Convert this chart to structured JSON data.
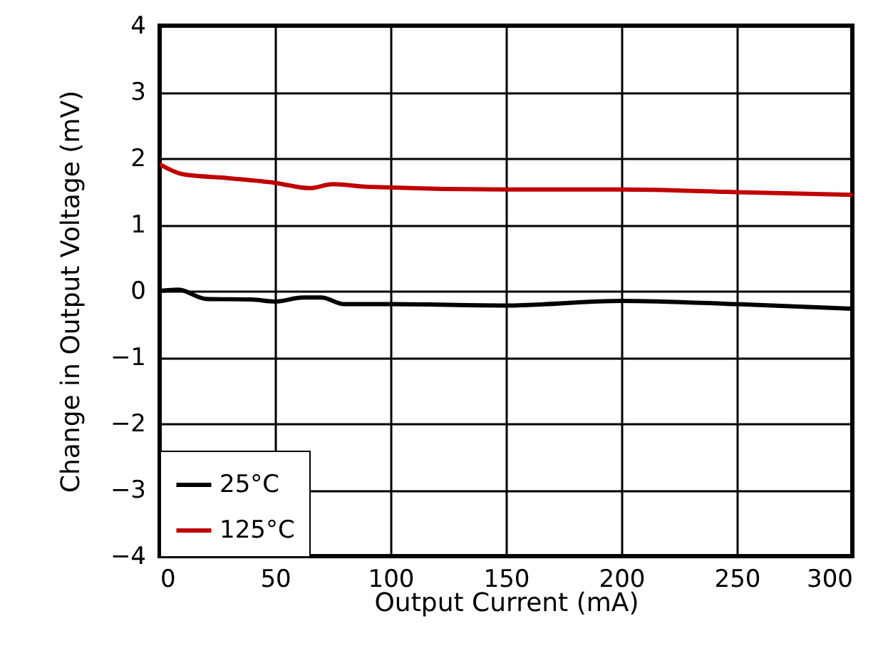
{
  "chart_data": {
    "type": "line",
    "xlabel": "Output Current (mA)",
    "ylabel": "Change in Output Voltage (mV)",
    "xlim": [
      0,
      300
    ],
    "xticks": [
      0,
      50,
      100,
      150,
      200,
      250,
      300
    ],
    "ylim": [
      -4,
      4
    ],
    "yticks": [
      -4,
      -3,
      -2,
      -1,
      0,
      1,
      2,
      3,
      4
    ],
    "grid": true,
    "legend": "bottom left",
    "series": [
      {
        "name": "25°C",
        "color": "#000000",
        "x": [
          0,
          8,
          20,
          40,
          50,
          62,
          70,
          80,
          100,
          150,
          200,
          250,
          300
        ],
        "values": [
          0.0,
          0.02,
          -0.12,
          -0.13,
          -0.16,
          -0.1,
          -0.1,
          -0.2,
          -0.2,
          -0.22,
          -0.15,
          -0.2,
          -0.27
        ]
      },
      {
        "name": "125°C",
        "color": "#c00000",
        "x": [
          0,
          10,
          30,
          50,
          65,
          75,
          90,
          150,
          200,
          250,
          300
        ],
        "values": [
          1.91,
          1.76,
          1.7,
          1.63,
          1.55,
          1.61,
          1.57,
          1.53,
          1.53,
          1.49,
          1.45
        ]
      }
    ]
  }
}
